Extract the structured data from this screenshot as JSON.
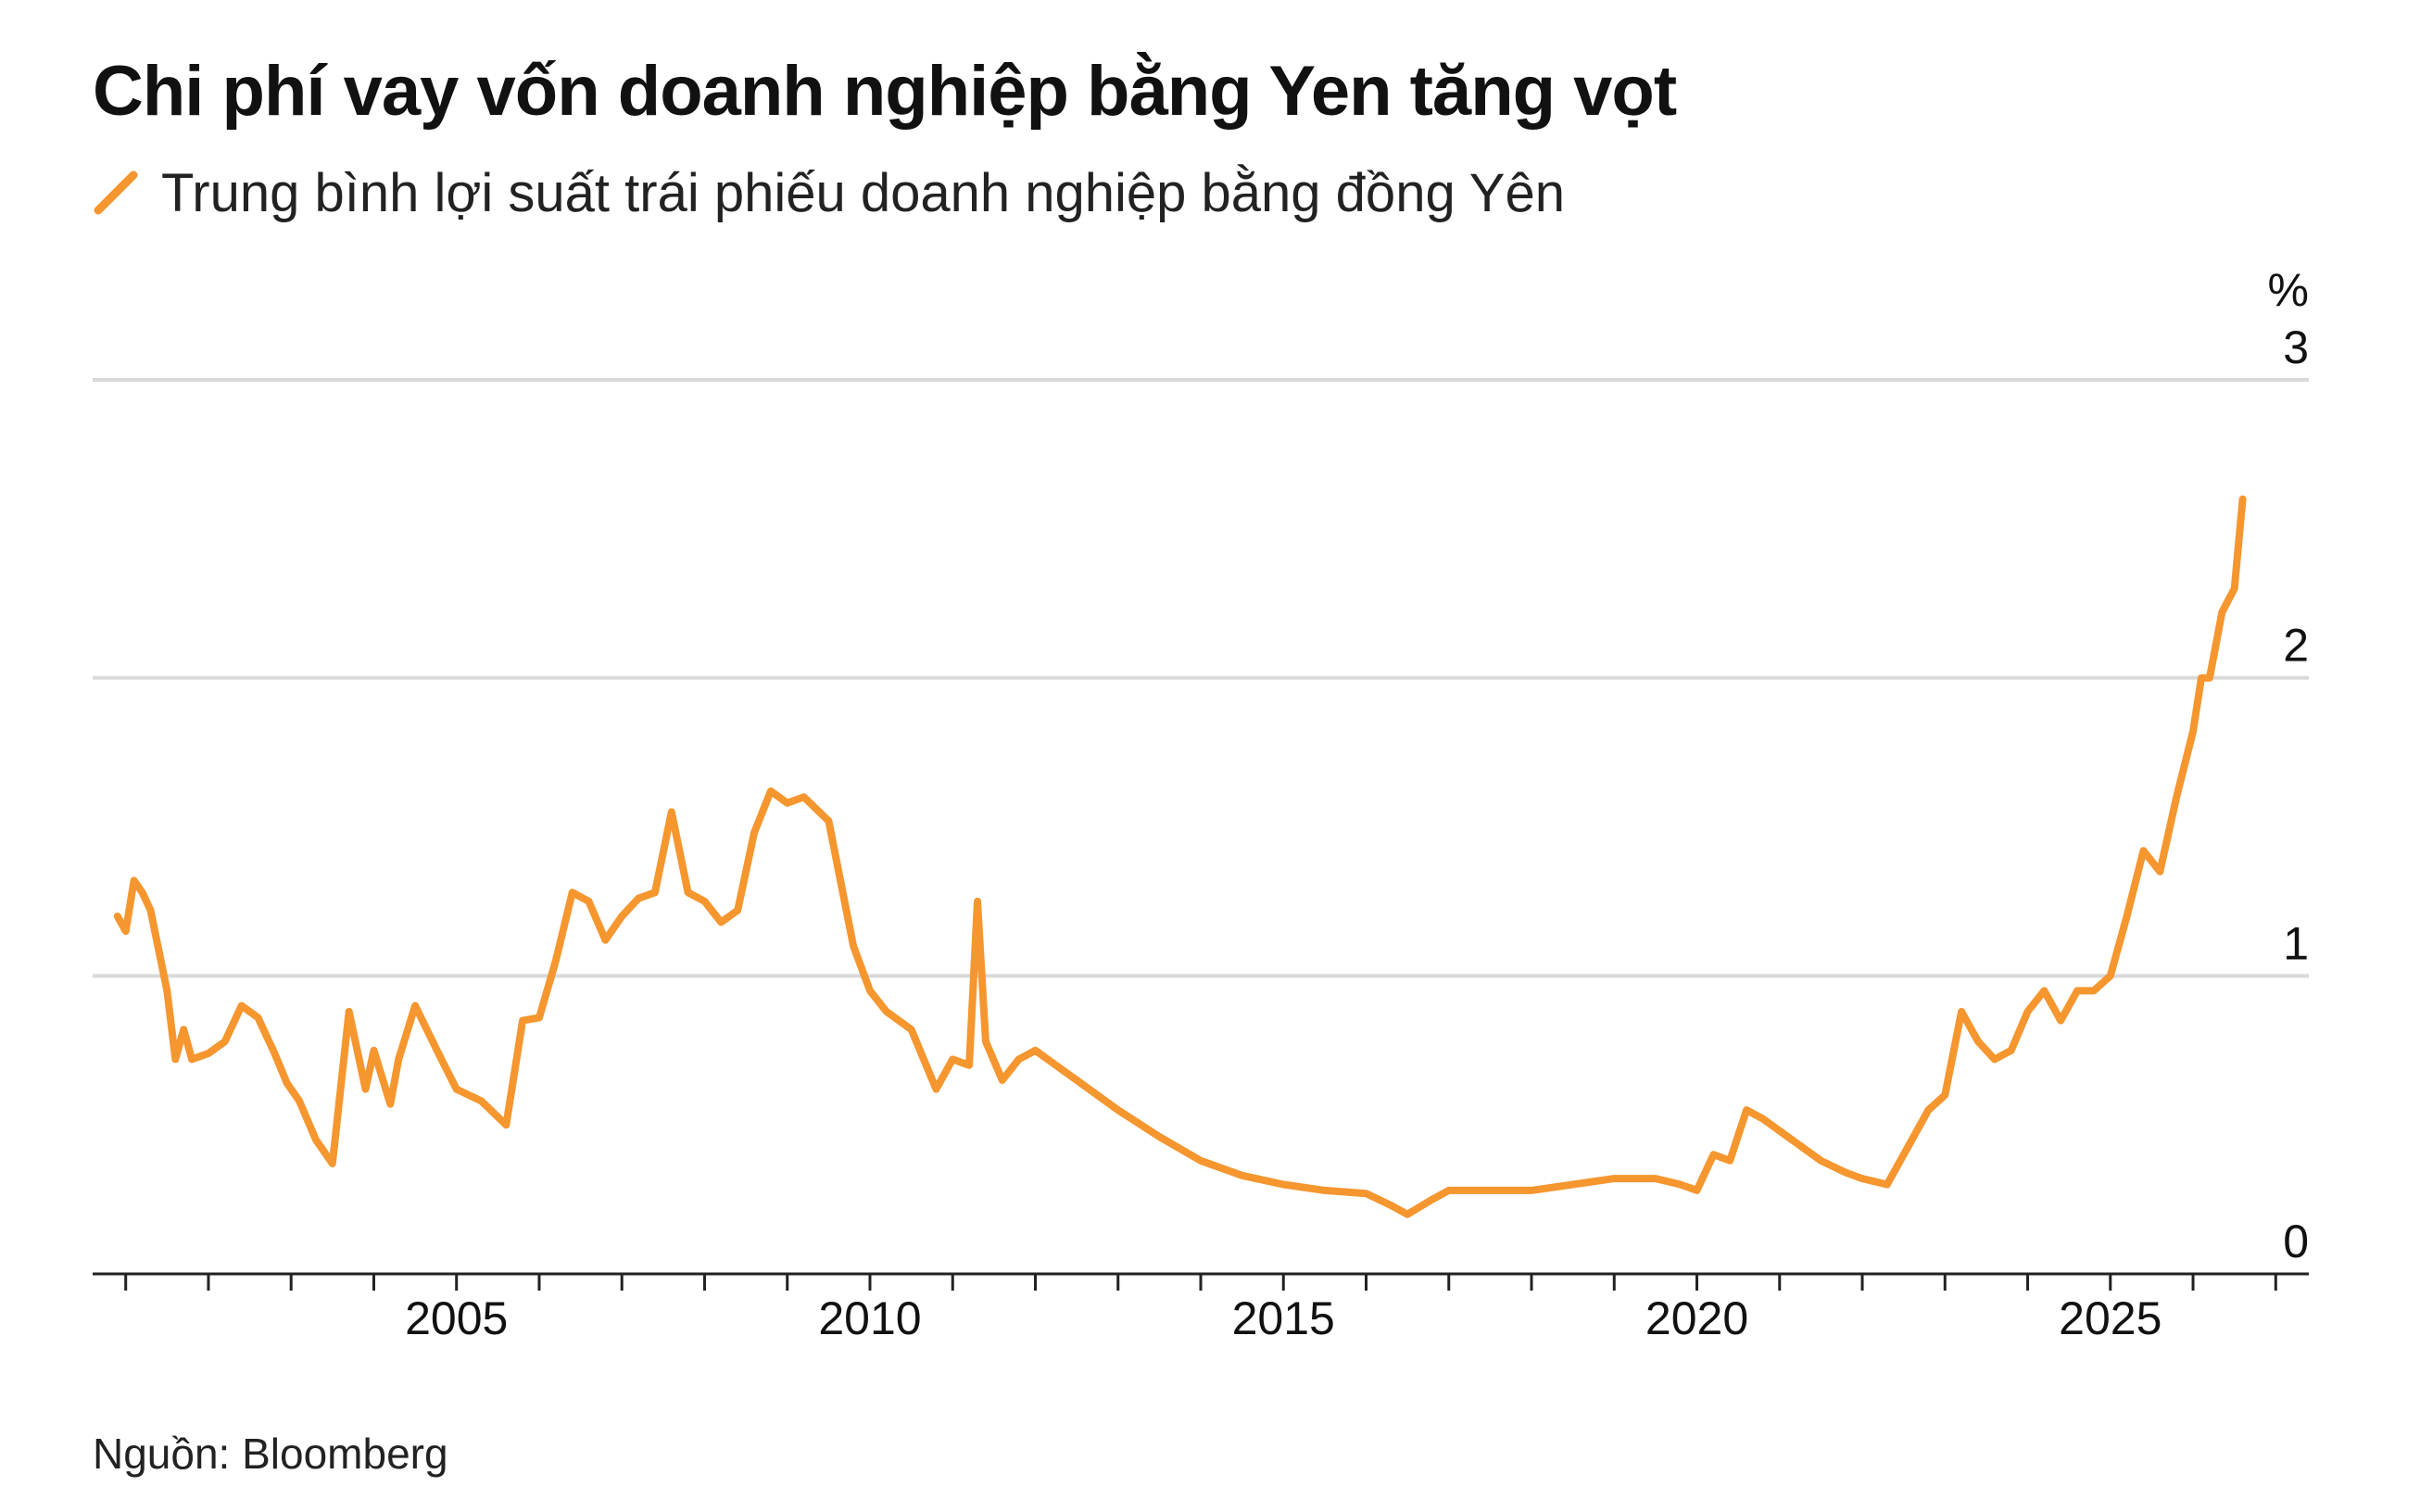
{
  "title": "Chi phí vay vốn doanh nghiệp bằng Yen tăng vọt",
  "legend": {
    "label": "Trung bình lợi suất trái phiếu doanh nghiệp bằng đồng Yên",
    "icon": "line-swatch-icon"
  },
  "source": "Nguồn: Bloomberg",
  "colors": {
    "series": "#f5962f",
    "grid": "#d9d9d9",
    "axis": "#222222",
    "text": "#111111"
  },
  "chart_data": {
    "type": "line",
    "title": "Chi phí vay vốn doanh nghiệp bằng Yen tăng vọt",
    "xlabel": "",
    "ylabel": "%",
    "unit": "%",
    "xlim": [
      2000.6,
      2027.4
    ],
    "ylim": [
      0,
      3
    ],
    "yticks": [
      "0",
      "1",
      "2",
      "3"
    ],
    "xtick_labels": [
      "2005",
      "2010",
      "2015",
      "2020",
      "2025"
    ],
    "grid": true,
    "legend_position": "top-left",
    "series": [
      {
        "color": "#f5962f",
        "x": [
          2000.9,
          2001.0,
          2001.1,
          2001.2,
          2001.3,
          2001.5,
          2001.6,
          2001.7,
          2001.8,
          2001.9,
          2002.0,
          2002.2,
          2002.4,
          2002.6,
          2002.8,
          2002.95,
          2003.1,
          2003.3,
          2003.5,
          2003.7,
          2003.9,
          2004.0,
          2004.2,
          2004.3,
          2004.5,
          2004.8,
          2005.0,
          2005.3,
          2005.6,
          2005.8,
          2006.0,
          2006.2,
          2006.4,
          2006.6,
          2006.8,
          2007.0,
          2007.2,
          2007.4,
          2007.6,
          2007.8,
          2008.0,
          2008.2,
          2008.4,
          2008.6,
          2008.8,
          2009.0,
          2009.2,
          2009.5,
          2009.8,
          2010.0,
          2010.2,
          2010.5,
          2010.8,
          2011.0,
          2011.2,
          2011.3,
          2011.4,
          2011.6,
          2011.8,
          2012.0,
          2012.5,
          2013.0,
          2013.5,
          2014.0,
          2014.5,
          2015.0,
          2015.5,
          2016.0,
          2016.3,
          2016.5,
          2016.8,
          2017.0,
          2017.5,
          2018.0,
          2018.5,
          2019.0,
          2019.5,
          2019.8,
          2020.0,
          2020.2,
          2020.4,
          2020.6,
          2020.8,
          2021.0,
          2021.5,
          2021.8,
          2022.0,
          2022.3,
          2022.5,
          2022.8,
          2023.0,
          2023.2,
          2023.4,
          2023.6,
          2023.8,
          2024.0,
          2024.2,
          2024.4,
          2024.6,
          2024.8,
          2025.0,
          2025.2,
          2025.4,
          2025.6,
          2025.8,
          2026.0,
          2026.1,
          2026.2,
          2026.35,
          2026.5,
          2026.6
        ],
        "values": [
          1.2,
          1.15,
          1.32,
          1.28,
          1.22,
          0.95,
          0.72,
          0.82,
          0.72,
          0.73,
          0.74,
          0.78,
          0.9,
          0.86,
          0.74,
          0.64,
          0.58,
          0.45,
          0.37,
          0.88,
          0.62,
          0.75,
          0.57,
          0.72,
          0.9,
          0.73,
          0.62,
          0.58,
          0.5,
          0.85,
          0.86,
          1.05,
          1.28,
          1.25,
          1.12,
          1.2,
          1.26,
          1.28,
          1.55,
          1.28,
          1.25,
          1.18,
          1.22,
          1.48,
          1.62,
          1.58,
          1.6,
          1.52,
          1.1,
          0.95,
          0.88,
          0.82,
          0.62,
          0.72,
          0.7,
          1.25,
          0.78,
          0.65,
          0.72,
          0.75,
          0.65,
          0.55,
          0.46,
          0.38,
          0.33,
          0.3,
          0.28,
          0.27,
          0.23,
          0.2,
          0.25,
          0.28,
          0.28,
          0.28,
          0.3,
          0.32,
          0.32,
          0.3,
          0.28,
          0.4,
          0.38,
          0.55,
          0.52,
          0.48,
          0.38,
          0.34,
          0.32,
          0.3,
          0.4,
          0.55,
          0.6,
          0.88,
          0.78,
          0.72,
          0.75,
          0.88,
          0.95,
          0.85,
          0.95,
          0.95,
          1.0,
          1.2,
          1.42,
          1.35,
          1.6,
          1.82,
          2.0,
          2.0,
          2.22,
          2.3,
          2.6
        ]
      }
    ]
  }
}
